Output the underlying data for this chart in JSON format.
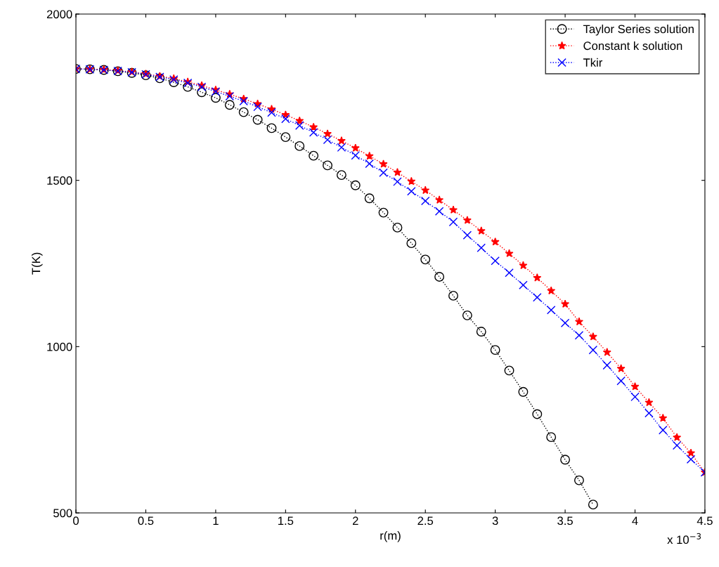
{
  "chart_data": {
    "type": "line",
    "xlabel": "r(m)",
    "ylabel": "T(K)",
    "xlim": [
      0,
      4.5
    ],
    "ylim": [
      500,
      2000
    ],
    "xticks": [
      0,
      0.5,
      1,
      1.5,
      2,
      2.5,
      3,
      3.5,
      4,
      4.5
    ],
    "yticks": [
      500,
      1000,
      1500,
      2000
    ],
    "grid": false,
    "legend": "top right",
    "line_style": "dotted",
    "annotations": [
      "x 10$^{−3}$"
    ],
    "series": [
      {
        "name": "Taylor Series solution",
        "color": "#000000",
        "marker": "circle",
        "x": [
          0,
          0.1,
          0.2,
          0.3,
          0.4,
          0.5,
          0.6,
          0.7,
          0.8,
          0.9,
          1.0,
          1.1,
          1.2,
          1.3,
          1.4,
          1.5,
          1.6,
          1.7,
          1.8,
          1.9,
          2.0,
          2.1,
          2.2,
          2.3,
          2.4,
          2.5,
          2.6,
          2.7,
          2.8,
          2.9,
          3.0,
          3.1,
          3.2,
          3.3,
          3.4,
          3.5,
          3.6,
          3.7
        ],
        "values": [
          1835,
          1834,
          1832,
          1828,
          1823,
          1816,
          1807,
          1795,
          1781,
          1765,
          1748,
          1727,
          1705,
          1682,
          1657,
          1630,
          1603,
          1574,
          1545,
          1516,
          1485,
          1446,
          1403,
          1358,
          1311,
          1262,
          1210,
          1153,
          1094,
          1045,
          990,
          928,
          864,
          797,
          728,
          660,
          598,
          525
        ]
      },
      {
        "name": "Constant k solution",
        "color": "#ff0000",
        "marker": "star",
        "x": [
          0,
          0.1,
          0.2,
          0.3,
          0.4,
          0.5,
          0.6,
          0.7,
          0.8,
          0.9,
          1.0,
          1.1,
          1.2,
          1.3,
          1.4,
          1.5,
          1.6,
          1.7,
          1.8,
          1.9,
          2.0,
          2.1,
          2.2,
          2.3,
          2.4,
          2.5,
          2.6,
          2.7,
          2.8,
          2.9,
          3.0,
          3.1,
          3.2,
          3.3,
          3.4,
          3.5,
          3.6,
          3.7,
          3.8,
          3.9,
          4.0,
          4.1,
          4.2,
          4.3,
          4.4,
          4.5
        ],
        "values": [
          1835,
          1834,
          1833,
          1830,
          1826,
          1820,
          1813,
          1806,
          1796,
          1785,
          1772,
          1759,
          1745,
          1730,
          1714,
          1697,
          1679,
          1660,
          1640,
          1619,
          1597,
          1573,
          1549,
          1524,
          1497,
          1470,
          1441,
          1411,
          1380,
          1348,
          1315,
          1280,
          1244,
          1207,
          1168,
          1128,
          1075,
          1030,
          983,
          934,
          880,
          832,
          785,
          727,
          680,
          622
        ]
      },
      {
        "name": "Tkir",
        "color": "#0000ff",
        "marker": "cross",
        "x": [
          0,
          0.1,
          0.2,
          0.3,
          0.4,
          0.5,
          0.6,
          0.7,
          0.8,
          0.9,
          1.0,
          1.1,
          1.2,
          1.3,
          1.4,
          1.5,
          1.6,
          1.7,
          1.8,
          1.9,
          2.0,
          2.1,
          2.2,
          2.3,
          2.4,
          2.5,
          2.6,
          2.7,
          2.8,
          2.9,
          3.0,
          3.1,
          3.2,
          3.3,
          3.4,
          3.5,
          3.6,
          3.7,
          3.8,
          3.9,
          4.0,
          4.1,
          4.2,
          4.3,
          4.4,
          4.5
        ],
        "values": [
          1835,
          1834,
          1832,
          1829,
          1825,
          1819,
          1811,
          1803,
          1793,
          1781,
          1767,
          1753,
          1738,
          1721,
          1704,
          1685,
          1665,
          1644,
          1622,
          1599,
          1575,
          1550,
          1523,
          1496,
          1467,
          1438,
          1407,
          1375,
          1335,
          1297,
          1258,
          1222,
          1185,
          1148,
          1110,
          1071,
          1034,
          990,
          944,
          897,
          849,
          800,
          749,
          703,
          661,
          622
        ]
      }
    ]
  }
}
